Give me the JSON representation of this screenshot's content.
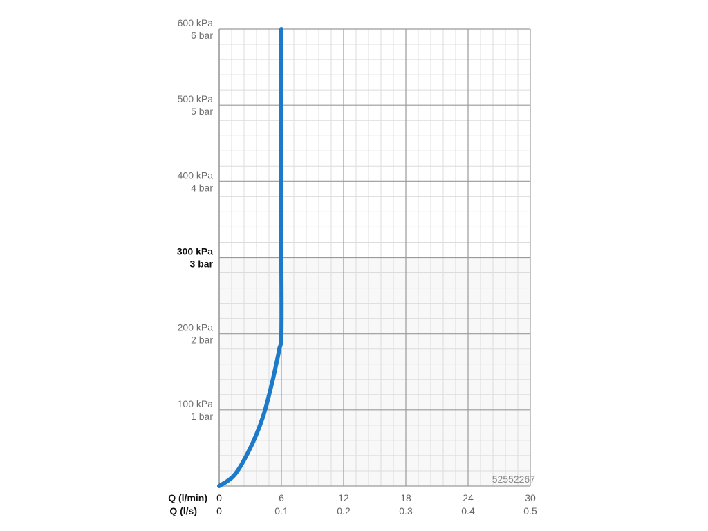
{
  "chart_data": {
    "type": "line",
    "x_axes": [
      {
        "label": "Q (l/min)",
        "ticks": [
          "0",
          "6",
          "12",
          "18",
          "24",
          "30"
        ],
        "range": [
          0,
          30
        ]
      },
      {
        "label": "Q (l/s)",
        "ticks": [
          "0",
          "0.1",
          "0.2",
          "0.3",
          "0.4",
          "0.5"
        ],
        "range": [
          0,
          0.5
        ]
      }
    ],
    "y_axis": {
      "ticks": [
        {
          "kpa": "100 kPa",
          "bar": "1 bar",
          "emphasis": false
        },
        {
          "kpa": "200 kPa",
          "bar": "2 bar",
          "emphasis": false
        },
        {
          "kpa": "300 kPa",
          "bar": "3 bar",
          "emphasis": true
        },
        {
          "kpa": "400 kPa",
          "bar": "4 bar",
          "emphasis": false
        },
        {
          "kpa": "500 kPa",
          "bar": "5 bar",
          "emphasis": false
        },
        {
          "kpa": "600 kPa",
          "bar": "6 bar",
          "emphasis": false
        }
      ],
      "range": [
        0,
        600
      ]
    },
    "grid": true,
    "series": [
      {
        "x": [
          0,
          1.5,
          3.0,
          4.2,
          5.0,
          5.5,
          5.8,
          6.0,
          6.0,
          6.0,
          6.0,
          6.0
        ],
        "y": [
          0,
          15,
          50,
          90,
          130,
          160,
          180,
          200,
          300,
          400,
          500,
          600
        ],
        "color": "#1c7ac9"
      }
    ],
    "annotation": "52552267"
  }
}
